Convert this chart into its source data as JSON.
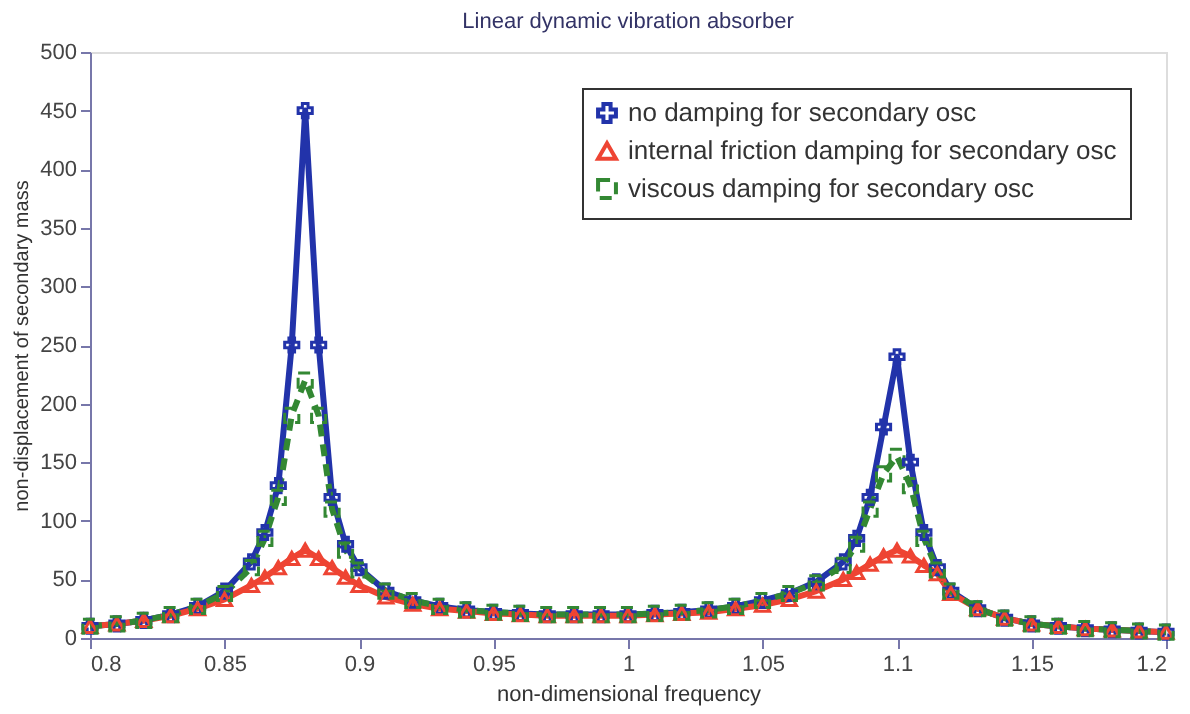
{
  "chart_data": {
    "type": "line",
    "title": "Linear dynamic vibration absorber",
    "xlabel": "non-dimensional frequency",
    "ylabel": "non-displacement of secondary mass",
    "x": [
      0.8,
      0.81,
      0.82,
      0.83,
      0.84,
      0.85,
      0.86,
      0.865,
      0.87,
      0.875,
      0.88,
      0.885,
      0.89,
      0.895,
      0.9,
      0.91,
      0.92,
      0.93,
      0.94,
      0.95,
      0.96,
      0.97,
      0.98,
      0.99,
      1.0,
      1.01,
      1.02,
      1.03,
      1.04,
      1.05,
      1.06,
      1.07,
      1.08,
      1.085,
      1.09,
      1.095,
      1.1,
      1.105,
      1.11,
      1.115,
      1.12,
      1.13,
      1.14,
      1.15,
      1.16,
      1.17,
      1.18,
      1.19,
      1.2
    ],
    "series": [
      {
        "name": "no damping for secondary osc",
        "color": "#2233aa",
        "marker": "cross",
        "line_style": "solid",
        "values": [
          10,
          12,
          15,
          20,
          27,
          40,
          65,
          90,
          130,
          250,
          450,
          250,
          120,
          80,
          60,
          40,
          32,
          27,
          24,
          22,
          21,
          20,
          20,
          20,
          20,
          21,
          22,
          24,
          27,
          32,
          38,
          48,
          65,
          85,
          120,
          180,
          240,
          150,
          90,
          60,
          40,
          25,
          17,
          12,
          10,
          8,
          7,
          6,
          5
        ]
      },
      {
        "name": "internal friction damping for secondary osc",
        "color": "#ee4433",
        "marker": "triangle",
        "line_style": "solid",
        "values": [
          10,
          12,
          15,
          19,
          25,
          33,
          45,
          52,
          60,
          68,
          75,
          68,
          60,
          52,
          45,
          35,
          29,
          25,
          23,
          21,
          20,
          19,
          19,
          19,
          19,
          20,
          21,
          22,
          25,
          28,
          33,
          40,
          50,
          56,
          63,
          70,
          75,
          70,
          62,
          55,
          38,
          25,
          17,
          12,
          10,
          8,
          7,
          6,
          5
        ]
      },
      {
        "name": "viscous damping for secondary osc",
        "color": "#338833",
        "marker": "square",
        "line_style": "dashed",
        "values": [
          10,
          12,
          15,
          20,
          27,
          38,
          60,
          85,
          120,
          190,
          220,
          190,
          110,
          75,
          58,
          40,
          32,
          27,
          24,
          22,
          21,
          20,
          20,
          20,
          20,
          21,
          22,
          24,
          27,
          32,
          38,
          47,
          62,
          80,
          110,
          140,
          155,
          130,
          85,
          58,
          40,
          25,
          17,
          12,
          10,
          8,
          7,
          6,
          5
        ]
      }
    ],
    "xlim": [
      0.8,
      1.2
    ],
    "xticks": [
      0.8,
      0.85,
      0.9,
      0.95,
      1,
      1.05,
      1.1,
      1.15,
      1.2
    ],
    "ylim": [
      0,
      500
    ],
    "yticks": [
      0,
      50,
      100,
      150,
      200,
      250,
      300,
      350,
      400,
      450,
      500
    ],
    "grid": false,
    "legend": "top right"
  }
}
